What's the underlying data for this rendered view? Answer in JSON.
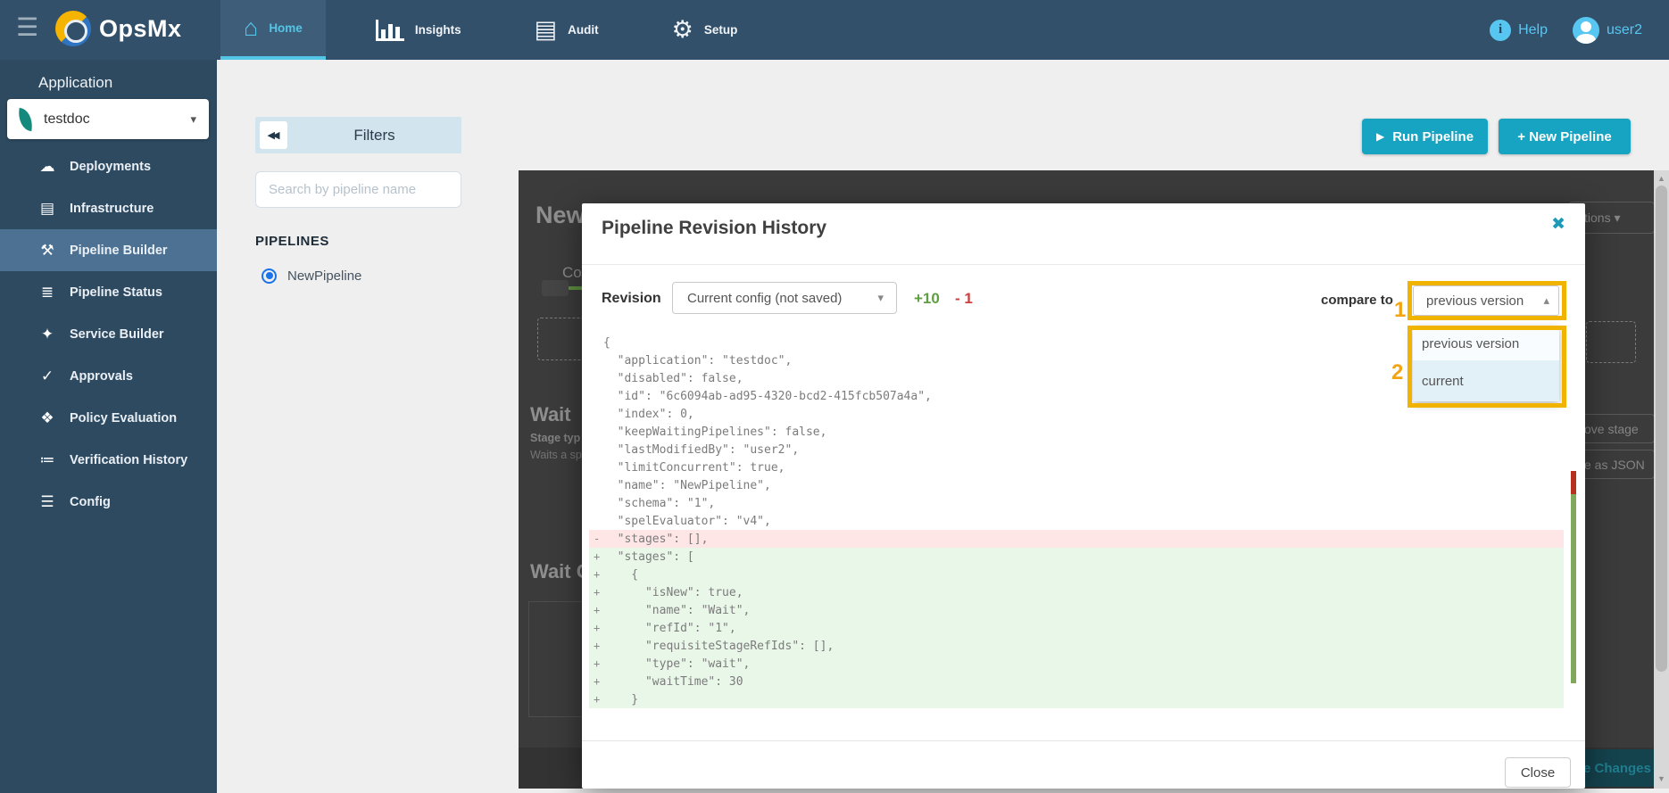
{
  "topnav": {
    "brand": "OpsMx",
    "tabs": [
      {
        "label": "Home",
        "icon": "home-icon",
        "glyph": "⌂",
        "active": true
      },
      {
        "label": "Insights",
        "icon": "insights-bar-chart-icon",
        "glyph": "bars",
        "active": false
      },
      {
        "label": "Audit",
        "icon": "audit-book-icon",
        "glyph": "▤",
        "active": false
      },
      {
        "label": "Setup",
        "icon": "setup-gear-icon",
        "glyph": "⚙",
        "active": false
      }
    ],
    "help_label": "Help",
    "user_label": "user2"
  },
  "sidebar": {
    "section_label": "Application",
    "app_selector_value": "testdoc",
    "items": [
      {
        "label": "Deployments",
        "icon": "deployments-icon",
        "glyph": "☁",
        "active": false
      },
      {
        "label": "Infrastructure",
        "icon": "infrastructure-icon",
        "glyph": "▤",
        "active": false
      },
      {
        "label": "Pipeline Builder",
        "icon": "pipeline-builder-icon",
        "glyph": "⚒",
        "active": true
      },
      {
        "label": "Pipeline Status",
        "icon": "pipeline-status-icon",
        "glyph": "≣",
        "active": false
      },
      {
        "label": "Service Builder",
        "icon": "service-builder-icon",
        "glyph": "✦",
        "active": false
      },
      {
        "label": "Approvals",
        "icon": "approvals-check-icon",
        "glyph": "✓",
        "active": false
      },
      {
        "label": "Policy Evaluation",
        "icon": "policy-shield-icon",
        "glyph": "❖",
        "active": false
      },
      {
        "label": "Verification History",
        "icon": "verification-history-icon",
        "glyph": "≔",
        "active": false
      },
      {
        "label": "Config",
        "icon": "config-icon",
        "glyph": "☰",
        "active": false
      }
    ]
  },
  "filters_panel": {
    "title": "Filters",
    "collapse_icon": "◀◀",
    "search_placeholder": "Search by pipeline name",
    "section_label": "PIPELINES",
    "pipelines": [
      {
        "name": "NewPipeline",
        "selected": true
      }
    ]
  },
  "actions": {
    "run_pipeline_label": "Run Pipeline",
    "new_pipeline_label": "+ New Pipeline"
  },
  "background_page": {
    "heading_clipped": "New",
    "config_label_clipped": "Co",
    "stage_title": "Wait",
    "stage_type_clipped": "Stage typ",
    "stage_desc_clipped": "Waits a sp",
    "stage2_title_clipped": "Wait C",
    "actions_button_clipped": "tions ▾",
    "remove_stage_clipped": "ove stage",
    "edit_json_clipped": "e as JSON",
    "save_changes_clipped": "e Changes"
  },
  "modal": {
    "title": "Pipeline Revision History",
    "close_icon": "✖",
    "revision_label": "Revision",
    "revision_value": "Current config (not saved)",
    "revision_chevron": "▾",
    "added_count": "+10",
    "removed_count": "- 1",
    "compare_label": "compare to",
    "compare_value": "previous version",
    "compare_chevron": "▴",
    "compare_options": [
      "previous version",
      "current"
    ],
    "close_button_label": "Close",
    "annotations": [
      {
        "number": "1"
      },
      {
        "number": "2"
      }
    ],
    "diff_lines": [
      {
        "m": "",
        "t": "{"
      },
      {
        "m": "",
        "t": "  \"application\": \"testdoc\","
      },
      {
        "m": "",
        "t": "  \"disabled\": false,"
      },
      {
        "m": "",
        "t": "  \"id\": \"6c6094ab-ad95-4320-bcd2-415fcb507a4a\","
      },
      {
        "m": "",
        "t": "  \"index\": 0,"
      },
      {
        "m": "",
        "t": "  \"keepWaitingPipelines\": false,"
      },
      {
        "m": "",
        "t": "  \"lastModifiedBy\": \"user2\","
      },
      {
        "m": "",
        "t": "  \"limitConcurrent\": true,"
      },
      {
        "m": "",
        "t": "  \"name\": \"NewPipeline\","
      },
      {
        "m": "",
        "t": "  \"schema\": \"1\","
      },
      {
        "m": "",
        "t": "  \"spelEvaluator\": \"v4\","
      },
      {
        "m": "-",
        "t": "  \"stages\": [],"
      },
      {
        "m": "+",
        "t": "  \"stages\": ["
      },
      {
        "m": "+",
        "t": "    {"
      },
      {
        "m": "+",
        "t": "      \"isNew\": true,"
      },
      {
        "m": "+",
        "t": "      \"name\": \"Wait\","
      },
      {
        "m": "+",
        "t": "      \"refId\": \"1\","
      },
      {
        "m": "+",
        "t": "      \"requisiteStageRefIds\": [],"
      },
      {
        "m": "+",
        "t": "      \"type\": \"wait\","
      },
      {
        "m": "+",
        "t": "      \"waitTime\": 30"
      },
      {
        "m": "+",
        "t": "    }"
      }
    ]
  },
  "colors": {
    "navbar": "#33506a",
    "sidebar": "#2e4a60",
    "accent_teal": "#17a3c2",
    "nav_cyan": "#57c7f2",
    "active_tab_underline": "#53c6e8",
    "annotation_gold": "#f0b400",
    "diff_added_bg": "#e9f7e9",
    "diff_removed_bg": "#ffe6e6",
    "added_count_green": "#5f9e42",
    "removed_count_red": "#cc4040",
    "minimap_red": "#b5301f",
    "minimap_green": "#7fa85b",
    "radio_blue": "#1a73e8"
  }
}
